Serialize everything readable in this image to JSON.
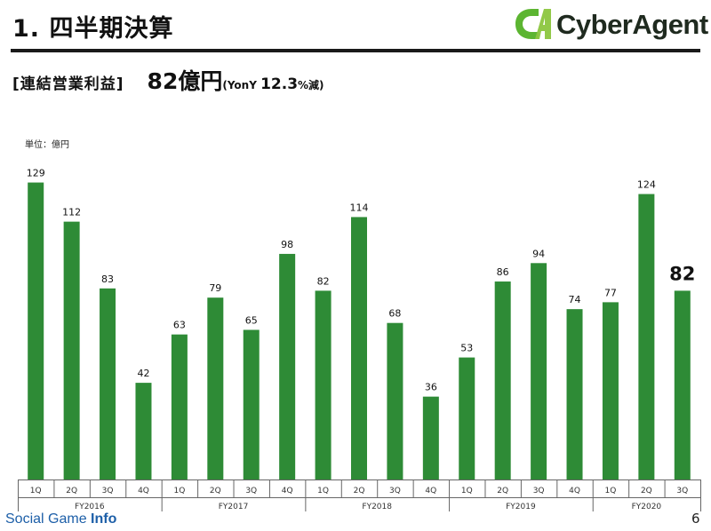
{
  "header": {
    "title": "1. 四半期決算",
    "logo_text": "CyberAgent",
    "logo_mark_text": "CA",
    "subtitle_label": "[連結営業利益]",
    "subtitle_value": "82億円",
    "subtitle_yoy_prefix": "(YonY ",
    "subtitle_yoy_value": "12.3",
    "subtitle_yoy_suffix": "%減)"
  },
  "colors": {
    "bar": "#2e8b36",
    "logo_green": "#5cb531",
    "axis": "#666666"
  },
  "chart_data": {
    "type": "bar",
    "unit_label": "単位：億円",
    "categories": [
      "1Q",
      "2Q",
      "3Q",
      "4Q",
      "1Q",
      "2Q",
      "3Q",
      "4Q",
      "1Q",
      "2Q",
      "3Q",
      "4Q",
      "1Q",
      "2Q",
      "3Q",
      "4Q",
      "1Q",
      "2Q",
      "3Q"
    ],
    "values": [
      129,
      112,
      83,
      42,
      63,
      79,
      65,
      98,
      82,
      114,
      68,
      36,
      53,
      86,
      94,
      74,
      77,
      124,
      82
    ],
    "highlight_last": true,
    "groups": [
      {
        "label": "FY2016",
        "count": 4
      },
      {
        "label": "FY2017",
        "count": 4
      },
      {
        "label": "FY2018",
        "count": 4
      },
      {
        "label": "FY2019",
        "count": 4
      },
      {
        "label": "FY2020",
        "count": 3
      }
    ],
    "ylim": [
      0,
      135
    ],
    "grid": false,
    "legend": "none"
  },
  "footer": {
    "source_logo_plain": "Social Game ",
    "source_logo_bold": "Info",
    "page_number": "6"
  }
}
